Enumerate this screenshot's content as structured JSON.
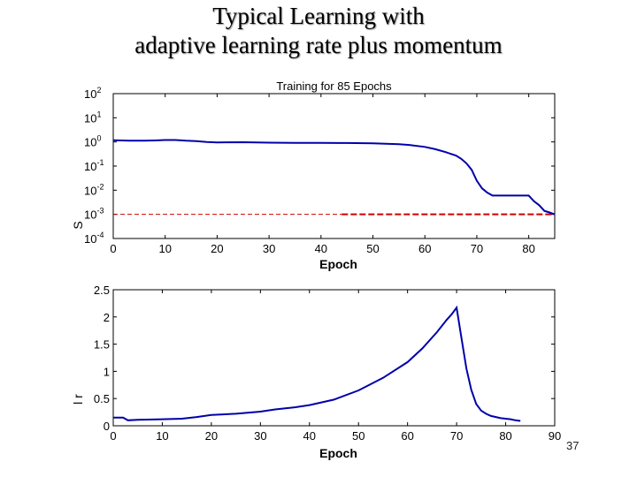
{
  "slide": {
    "title_line1": "Typical Learning with",
    "title_line2": "adaptive learning rate plus momentum",
    "page_number": "37"
  },
  "colors": {
    "series": "#0000aa",
    "goal": "#cc0000",
    "axis": "#000000",
    "background": "#ffffff"
  },
  "chart_data": [
    {
      "type": "line",
      "title": "Training for 85 Epochs",
      "xlabel": "Epoch",
      "ylabel": "S",
      "yscale": "log",
      "xlim": [
        0,
        85
      ],
      "ylim_exp": [
        -4,
        2
      ],
      "xticks": [
        "0",
        "10",
        "20",
        "30",
        "40",
        "50",
        "60",
        "70",
        "80"
      ],
      "xtick_values": [
        0,
        10,
        20,
        30,
        40,
        50,
        60,
        70,
        80
      ],
      "ytick_base": "10",
      "ytick_exponents": [
        "2",
        "1",
        "0",
        "-1",
        "-2",
        "-3",
        "-4"
      ],
      "goal": 0.001,
      "series": [
        {
          "x": [
            0,
            3,
            6,
            8,
            10,
            12,
            14,
            16,
            18,
            20,
            25,
            30,
            35,
            40,
            45,
            50,
            55,
            57,
            60,
            62,
            64,
            66,
            67,
            68,
            69,
            70,
            71,
            72,
            73,
            74,
            76,
            78,
            79,
            80,
            81,
            82,
            83,
            84,
            85
          ],
          "y": [
            1.18,
            1.12,
            1.12,
            1.15,
            1.2,
            1.2,
            1.12,
            1.08,
            1.0,
            0.96,
            0.97,
            0.93,
            0.92,
            0.92,
            0.9,
            0.88,
            0.8,
            0.75,
            0.62,
            0.5,
            0.38,
            0.27,
            0.2,
            0.13,
            0.07,
            0.025,
            0.012,
            0.008,
            0.006,
            0.006,
            0.006,
            0.006,
            0.006,
            0.006,
            0.0035,
            0.0024,
            0.0014,
            0.0012,
            0.001
          ]
        }
      ]
    },
    {
      "type": "line",
      "title": "",
      "xlabel": "Epoch",
      "ylabel": "l r",
      "xlim": [
        0,
        90
      ],
      "ylim": [
        0,
        2.5
      ],
      "xticks": [
        "0",
        "10",
        "20",
        "30",
        "40",
        "50",
        "60",
        "70",
        "80",
        "90"
      ],
      "xtick_values": [
        0,
        10,
        20,
        30,
        40,
        50,
        60,
        70,
        80,
        90
      ],
      "yticks": [
        "2.5",
        "2",
        "1.5",
        "1",
        "0.5",
        "0"
      ],
      "ytick_values": [
        2.5,
        2,
        1.5,
        1,
        0.5,
        0
      ],
      "series": [
        {
          "x": [
            0,
            2,
            3,
            5,
            10,
            14,
            17,
            20,
            25,
            30,
            33,
            37,
            40,
            45,
            50,
            55,
            60,
            63,
            66,
            68,
            69,
            70,
            71,
            72,
            73,
            74,
            75,
            76,
            77,
            79,
            81,
            82,
            83
          ],
          "y": [
            0.15,
            0.15,
            0.1,
            0.11,
            0.12,
            0.13,
            0.16,
            0.2,
            0.22,
            0.26,
            0.3,
            0.34,
            0.38,
            0.48,
            0.65,
            0.88,
            1.17,
            1.42,
            1.72,
            1.95,
            2.05,
            2.17,
            1.6,
            1.05,
            0.66,
            0.4,
            0.28,
            0.22,
            0.18,
            0.14,
            0.12,
            0.1,
            0.09
          ]
        }
      ]
    }
  ]
}
